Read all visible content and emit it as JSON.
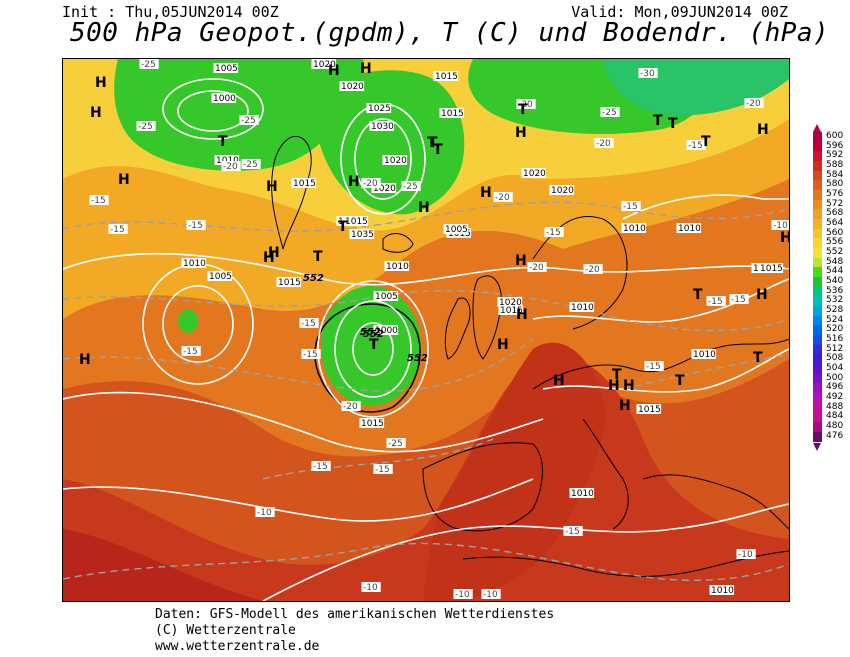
{
  "header": {
    "init": "Init : Thu,05JUN2014 00Z",
    "valid": "Valid: Mon,09JUN2014 00Z",
    "title": "500 hPa Geopot.(gpdm), T (C) und Bodendr. (hPa)"
  },
  "credits": [
    "Daten: GFS-Modell des amerikanischen Wetterdienstes",
    "(C) Wetterzentrale",
    "www.wetterzentrale.de"
  ],
  "legend": {
    "levels": [
      "600",
      "596",
      "592",
      "588",
      "584",
      "580",
      "576",
      "572",
      "568",
      "564",
      "560",
      "556",
      "552",
      "548",
      "544",
      "540",
      "536",
      "532",
      "528",
      "524",
      "520",
      "516",
      "512",
      "508",
      "504",
      "500",
      "496",
      "492",
      "488",
      "484",
      "480",
      "476"
    ],
    "colors": [
      "#b0004a",
      "#c40031",
      "#d2102c",
      "#c9301e",
      "#d24a1e",
      "#dc5f1e",
      "#e2771f",
      "#e98c22",
      "#efa125",
      "#f4b226",
      "#f7c52b",
      "#fbd334",
      "#f6df3c",
      "#b8e62a",
      "#4fd91e",
      "#1fc23b",
      "#00c77a",
      "#00bfb3",
      "#00a6e2",
      "#0087ea",
      "#0067e9",
      "#1a4ae4",
      "#2e2ee0",
      "#3d1ed6",
      "#5a14cf",
      "#7a10c6",
      "#9812c1",
      "#b80ebb",
      "#c10ea0",
      "#c50e8a",
      "#a30c80",
      "#6a0a6a"
    ]
  },
  "map": {
    "pressure_labels": [
      "1005",
      "1020",
      "1015",
      "1000",
      "1020",
      "1025",
      "1030",
      "1015",
      "1010",
      "1015",
      "1020",
      "1025",
      "1035",
      "1020",
      "1015",
      "1005",
      "1010",
      "1015",
      "1005",
      "1000",
      "1015",
      "1015",
      "1010",
      "1010",
      "1020",
      "1020",
      "1020",
      "1010",
      "1015",
      "1005",
      "1010",
      "1015",
      "1010",
      "1010",
      "1015",
      "1010",
      "1010"
    ],
    "temp_labels": [
      "-25",
      "-25",
      "-25",
      "-25",
      "-20",
      "-30",
      "-20",
      "-20",
      "-25",
      "-20",
      "-20",
      "-15",
      "-25",
      "-20",
      "-15",
      "-15",
      "-15",
      "-15",
      "-15",
      "-20",
      "-20",
      "-15",
      "-15",
      "-15",
      "-15",
      "-15",
      "-15",
      "-15",
      "-20",
      "-25",
      "-15",
      "-10",
      "-15",
      "-10",
      "-10",
      "-10",
      "-10",
      "-10"
    ],
    "height_labels": [
      "552",
      "552",
      "552",
      "552"
    ],
    "centers": [
      "H",
      "H",
      "H",
      "H",
      "H",
      "H",
      "H",
      "H",
      "H",
      "H",
      "H",
      "H",
      "H",
      "H",
      "H",
      "H",
      "H",
      "H",
      "H",
      "H",
      "H",
      "H",
      "H",
      "T",
      "T",
      "T",
      "T",
      "T",
      "T",
      "T",
      "T",
      "T",
      "T",
      "T",
      "T",
      "T",
      "T",
      "T"
    ]
  }
}
